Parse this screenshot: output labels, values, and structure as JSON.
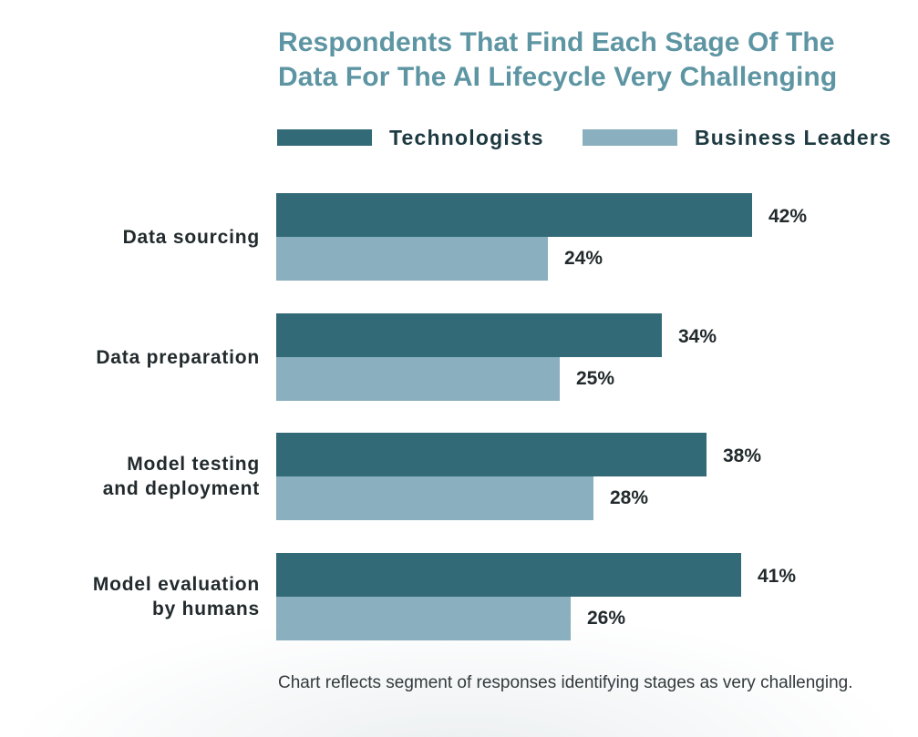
{
  "chart_data": {
    "type": "bar",
    "orientation": "horizontal",
    "title": "Respondents That Find Each Stage Of The Data For The AI Lifecycle Very Challenging",
    "title_lines": [
      "Respondents That Find Each Stage Of The",
      "Data For The AI Lifecycle Very Challenging"
    ],
    "categories": [
      "Data sourcing",
      "Data preparation",
      "Model testing and deployment",
      "Model evaluation by humans"
    ],
    "category_lines": [
      [
        "Data sourcing"
      ],
      [
        "Data preparation"
      ],
      [
        "Model testing",
        "and deployment"
      ],
      [
        "Model evaluation",
        "by humans"
      ]
    ],
    "series": [
      {
        "name": "Technologists",
        "color": "#336a78",
        "values": [
          42,
          34,
          38,
          41
        ]
      },
      {
        "name": "Business Leaders",
        "color": "#8aafbe",
        "values": [
          24,
          25,
          28,
          26
        ]
      }
    ],
    "value_suffix": "%",
    "xlim": [
      0,
      100
    ],
    "xlabel": "",
    "ylabel": "",
    "grid": false,
    "legend_position": "top",
    "note": "Chart reflects segment of responses identifying stages as very challenging."
  }
}
